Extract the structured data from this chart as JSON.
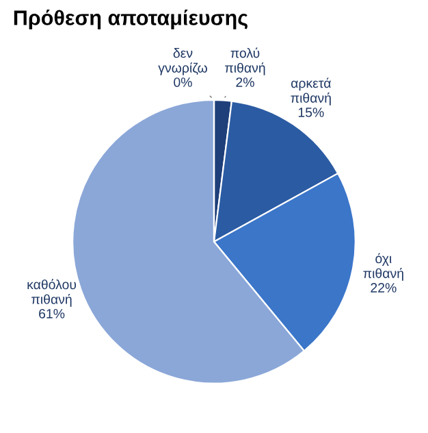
{
  "chart_data": {
    "type": "pie",
    "title": "Πρόθεση αποταμίευσης",
    "categories": [
      "πολύ πιθανή",
      "αρκετά πιθανή",
      "όχι πιθανή",
      "καθόλου πιθανή",
      "δεν γνωρίζω"
    ],
    "values": [
      2,
      15,
      22,
      61,
      0
    ],
    "colors": [
      "#1f3f7a",
      "#2b5ba3",
      "#3b76c9",
      "#8ba7d8",
      "#c9d3e6"
    ],
    "value_labels": [
      "2%",
      "15%",
      "22%",
      "61%",
      "0%"
    ],
    "legend": false
  }
}
